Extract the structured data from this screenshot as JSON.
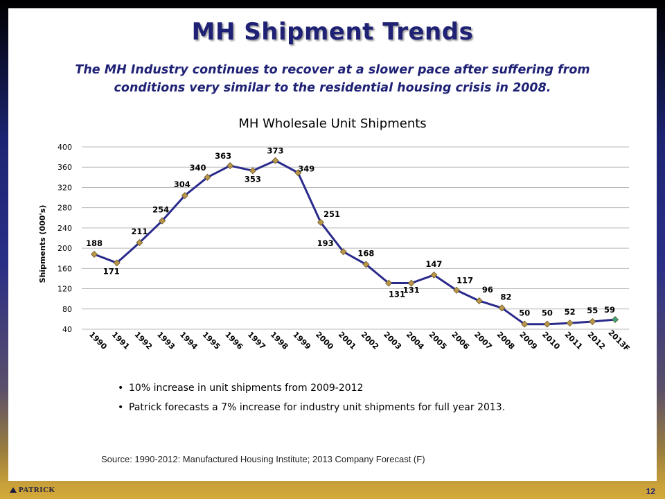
{
  "slide": {
    "title": "MH Shipment Trends",
    "subtitle": "The MH Industry continues to recover at a slower pace after suffering from conditions very similar to the residential housing crisis in 2008.",
    "bullets": [
      "10% increase in unit shipments from 2009-2012",
      "Patrick forecasts a 7% increase for industry unit shipments for full year 2013."
    ],
    "source": "Source: 1990-2012: Manufactured Housing Institute; 2013 Company Forecast (F)",
    "logo": "PATRICK",
    "page_number": "12"
  },
  "colors": {
    "line": "#2a2a8c",
    "marker": "#b8964a",
    "forecast_marker": "#3aa37a",
    "title": "#1f2175"
  },
  "chart_data": {
    "type": "line",
    "title": "MH Wholesale Unit Shipments",
    "xlabel": "",
    "ylabel": "Shipments (000's)",
    "ylim": [
      40,
      400
    ],
    "yticks": [
      40,
      80,
      120,
      160,
      200,
      240,
      280,
      320,
      360,
      400
    ],
    "grid": true,
    "categories": [
      "1990",
      "1991",
      "1992",
      "1993",
      "1994",
      "1995",
      "1996",
      "1997",
      "1998",
      "1999",
      "2000",
      "2001",
      "2002",
      "2003",
      "2004",
      "2005",
      "2006",
      "2007",
      "2008",
      "2009",
      "2010",
      "2011",
      "2012",
      "2013F"
    ],
    "values": [
      188,
      171,
      211,
      254,
      304,
      340,
      363,
      353,
      373,
      349,
      251,
      193,
      168,
      131,
      131,
      147,
      117,
      96,
      82,
      50,
      50,
      52,
      55,
      59
    ],
    "labels": [
      "188",
      "171",
      "211",
      "254",
      "304",
      "340",
      "363",
      "353",
      "373",
      "349",
      "251",
      "193",
      "168",
      "131",
      "131",
      "147",
      "117",
      "96",
      "82",
      "50",
      "50",
      "52",
      "55",
      "59"
    ],
    "forecast_index": 23
  }
}
